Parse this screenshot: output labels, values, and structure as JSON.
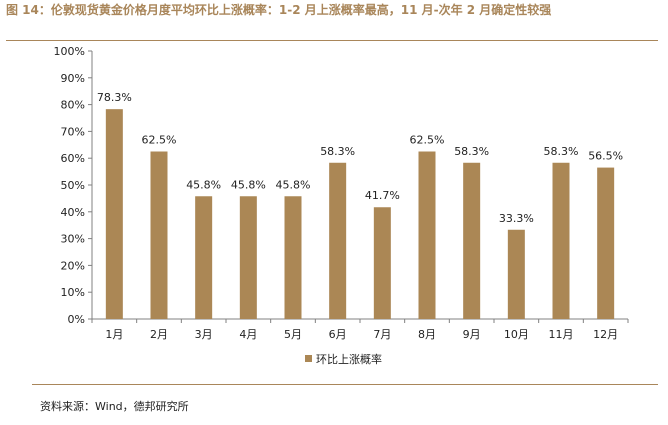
{
  "header": {
    "title": "图 14：伦敦现货黄金价格月度平均环比上涨概率：1-2 月上涨概率最高，11 月-次年 2 月确定性较强"
  },
  "footer": {
    "source": "资料来源：Wind，德邦研究所"
  },
  "colors": {
    "accent": "#a9865a",
    "bar": "#ab8755",
    "axis": "#808080"
  },
  "chart_data": {
    "type": "bar",
    "categories": [
      "1月",
      "2月",
      "3月",
      "4月",
      "5月",
      "6月",
      "7月",
      "8月",
      "9月",
      "10月",
      "11月",
      "12月"
    ],
    "series": [
      {
        "name": "环比上涨概率",
        "values": [
          78.3,
          62.5,
          45.8,
          45.8,
          45.8,
          58.3,
          41.7,
          62.5,
          58.3,
          33.3,
          58.3,
          56.5
        ],
        "labels": [
          "78.3%",
          "62.5%",
          "45.8%",
          "45.8%",
          "45.8%",
          "58.3%",
          "41.7%",
          "62.5%",
          "58.3%",
          "33.3%",
          "58.3%",
          "56.5%"
        ]
      }
    ],
    "yticks": [
      "0%",
      "10%",
      "20%",
      "30%",
      "40%",
      "50%",
      "60%",
      "70%",
      "80%",
      "90%",
      "100%"
    ],
    "ylim": [
      0,
      100
    ],
    "grid": false,
    "legend": "bottom-center"
  }
}
